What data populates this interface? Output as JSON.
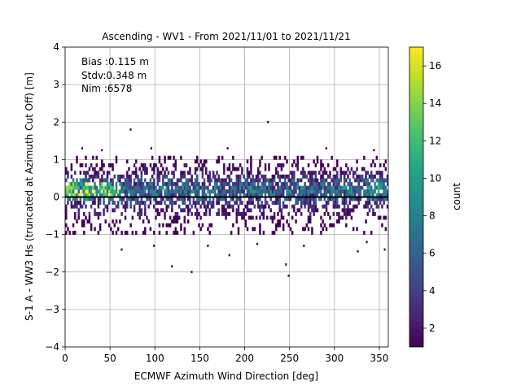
{
  "chart_data": {
    "type": "heatmap",
    "title": "Ascending - WV1 - From 2021/11/01 to 2021/11/21",
    "xlabel": "ECMWF Azimuth Wind Direction [deg]",
    "ylabel": "S-1 A - WW3 Hs (truncated at Azimuth Cut Off) [m]",
    "xlim": [
      0,
      360
    ],
    "ylim": [
      -4,
      4
    ],
    "xticks": [
      "0",
      "50",
      "100",
      "150",
      "200",
      "250",
      "300",
      "350"
    ],
    "yticks": [
      "4",
      "3",
      "2",
      "1",
      "0",
      "−1",
      "−2",
      "−3",
      "−4"
    ],
    "grid": true,
    "annotations": [
      "Bias :0.115 m",
      "Stdv:0.348 m",
      "Nim :6578"
    ],
    "colorbar": {
      "label": "count",
      "range": [
        1,
        17
      ],
      "ticks": [
        "2",
        "4",
        "6",
        "8",
        "10",
        "12",
        "14",
        "16"
      ],
      "colormap": "viridis"
    },
    "reference_line": {
      "y": 0,
      "color": "#000000"
    },
    "density_profile": {
      "y_rows": [
        -1.0,
        -0.9,
        -0.8,
        -0.7,
        -0.6,
        -0.5,
        -0.4,
        -0.3,
        -0.2,
        -0.1,
        0.0,
        0.1,
        0.2,
        0.3,
        0.4,
        0.5,
        0.6,
        0.7,
        0.8,
        0.9,
        1.0
      ],
      "typical_count": [
        1,
        1,
        1,
        1,
        2,
        3,
        3,
        4,
        5,
        7,
        8,
        9,
        9,
        7,
        6,
        4,
        3,
        2,
        2,
        1,
        1
      ],
      "peak_count": 17,
      "peak_x": [
        0,
        60
      ],
      "peak_y": [
        0.0,
        0.3
      ]
    },
    "outliers": [
      {
        "x": 72,
        "y": 1.8
      },
      {
        "x": 225,
        "y": 2.0
      },
      {
        "x": 118,
        "y": -1.85
      },
      {
        "x": 140,
        "y": -2.0
      },
      {
        "x": 245,
        "y": -1.8
      },
      {
        "x": 248,
        "y": -2.1
      },
      {
        "x": 182,
        "y": -1.55
      },
      {
        "x": 325,
        "y": -1.45
      },
      {
        "x": 355,
        "y": -1.4
      },
      {
        "x": 62,
        "y": -1.4
      },
      {
        "x": 98,
        "y": -1.3
      },
      {
        "x": 158,
        "y": -1.3
      },
      {
        "x": 265,
        "y": -1.3
      },
      {
        "x": 213,
        "y": -1.25
      },
      {
        "x": 335,
        "y": -1.2
      },
      {
        "x": 18,
        "y": 1.3
      },
      {
        "x": 40,
        "y": 1.25
      },
      {
        "x": 95,
        "y": 1.3
      },
      {
        "x": 180,
        "y": 1.3
      },
      {
        "x": 290,
        "y": 1.3
      },
      {
        "x": 343,
        "y": 1.25
      }
    ]
  }
}
